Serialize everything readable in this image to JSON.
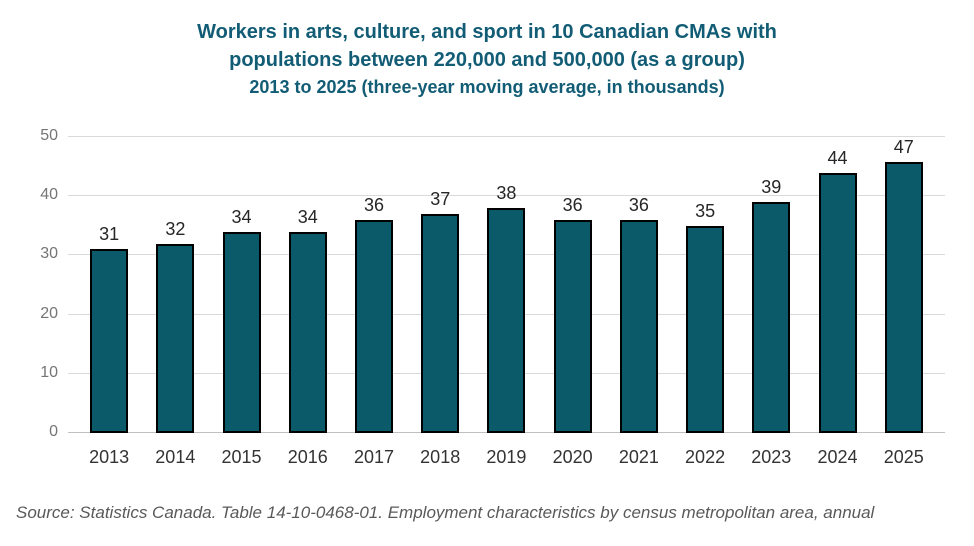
{
  "title": {
    "line1": "Workers in arts, culture, and sport in 10 Canadian CMAs with",
    "line2": "populations between 220,000 and 500,000 (as a group)",
    "line3": "2013 to 2025 (three-year moving average, in thousands)"
  },
  "source": "Source: Statistics Canada. Table 14-10-0468-01. Employment characteristics by census metropolitan area, annual",
  "chart_data": {
    "type": "bar",
    "categories": [
      "2013",
      "2014",
      "2015",
      "2016",
      "2017",
      "2018",
      "2019",
      "2020",
      "2021",
      "2022",
      "2023",
      "2024",
      "2025"
    ],
    "values": [
      31,
      32,
      34,
      34,
      36,
      37,
      38,
      36,
      36,
      35,
      39,
      44,
      47
    ],
    "title": "Workers in arts, culture, and sport in 10 Canadian CMAs with populations between 220,000 and 500,000 (as a group) 2013 to 2025 (three-year moving average, in thousands)",
    "xlabel": "",
    "ylabel": "",
    "ylim": [
      0,
      50
    ],
    "yticks": [
      0,
      10,
      20,
      30,
      40,
      50
    ],
    "grid": true,
    "legend": "none",
    "data_labels": true,
    "colors": {
      "bar_fill": "#0A5A6A",
      "bar_border": "#000000",
      "title_text": "#125D75",
      "value_label_text": "#262626",
      "x_tick_text": "#333333",
      "y_tick_text": "#757575",
      "gridline": "#D9D9D9",
      "baseline": "#C0C0C0",
      "source_text": "#595959"
    }
  }
}
